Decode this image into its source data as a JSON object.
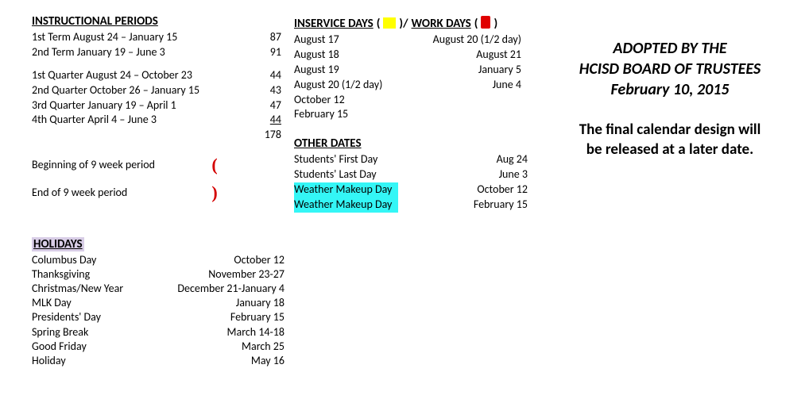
{
  "instructional": {
    "title": "INSTRUCTIONAL PERIODS",
    "terms": [
      {
        "label": "1st Term August 24 – January 15",
        "days": "87"
      },
      {
        "label": "2nd Term January 19 – June 3",
        "days": "91"
      }
    ],
    "quarters": [
      {
        "label": "1st Quarter August 24 – October 23",
        "days": "44"
      },
      {
        "label": "2nd Quarter October 26 – January 15",
        "days": "43"
      },
      {
        "label": "3rd Quarter January 19 – April 1",
        "days": "47"
      },
      {
        "label": "4th Quarter April 4 – June 3",
        "days": "44",
        "underline": true
      }
    ],
    "total": "178",
    "begin9": {
      "label": "Beginning of 9 week period",
      "marker": "("
    },
    "end9": {
      "label": "End of 9 week period",
      "marker": ")"
    }
  },
  "holidays": {
    "title": "HOLIDAYS",
    "items": [
      {
        "name": "Columbus Day",
        "date": "October 12"
      },
      {
        "name": "Thanksgiving",
        "date": "November 23-27"
      },
      {
        "name": "Christmas/New Year",
        "date": "December 21-January 4"
      },
      {
        "name": "MLK Day",
        "date": "January 18"
      },
      {
        "name": "Presidents' Day",
        "date": "February 15"
      },
      {
        "name": "Spring Break",
        "date": "March 14-18"
      },
      {
        "name": "Good Friday",
        "date": "March 25"
      },
      {
        "name": "Holiday",
        "date": "May 16"
      }
    ]
  },
  "inservice": {
    "title_a": "INSERVICE DAYS",
    "title_b": "WORK DAYS",
    "swatch_yellow": "#ffff00",
    "swatch_red": "#e00000",
    "left": [
      "August 17",
      "August 18",
      "August 19",
      "August 20 (1/2 day)",
      "October 12",
      "February 15"
    ],
    "right": [
      "August 20 (1/2 day)",
      "August 21",
      "January 5",
      "June 4"
    ]
  },
  "other": {
    "title": "OTHER DATES",
    "rows": [
      {
        "label": "Students' First Day",
        "date": "Aug 24",
        "hl": false
      },
      {
        "label": "Students' Last Day",
        "date": "June 3",
        "hl": false
      },
      {
        "label": "Weather Makeup Day",
        "date": "October 12",
        "hl": true
      },
      {
        "label": "Weather Makeup Day",
        "date": "February 15",
        "hl": true
      }
    ],
    "hl_color": "#34f6f6"
  },
  "adopt": {
    "l1": "ADOPTED BY THE",
    "l2": "HCISD BOARD OF TRUSTEES",
    "l3": "February 10, 2015"
  },
  "note": {
    "l1": "The final calendar design will",
    "l2": "be released at a later date."
  }
}
